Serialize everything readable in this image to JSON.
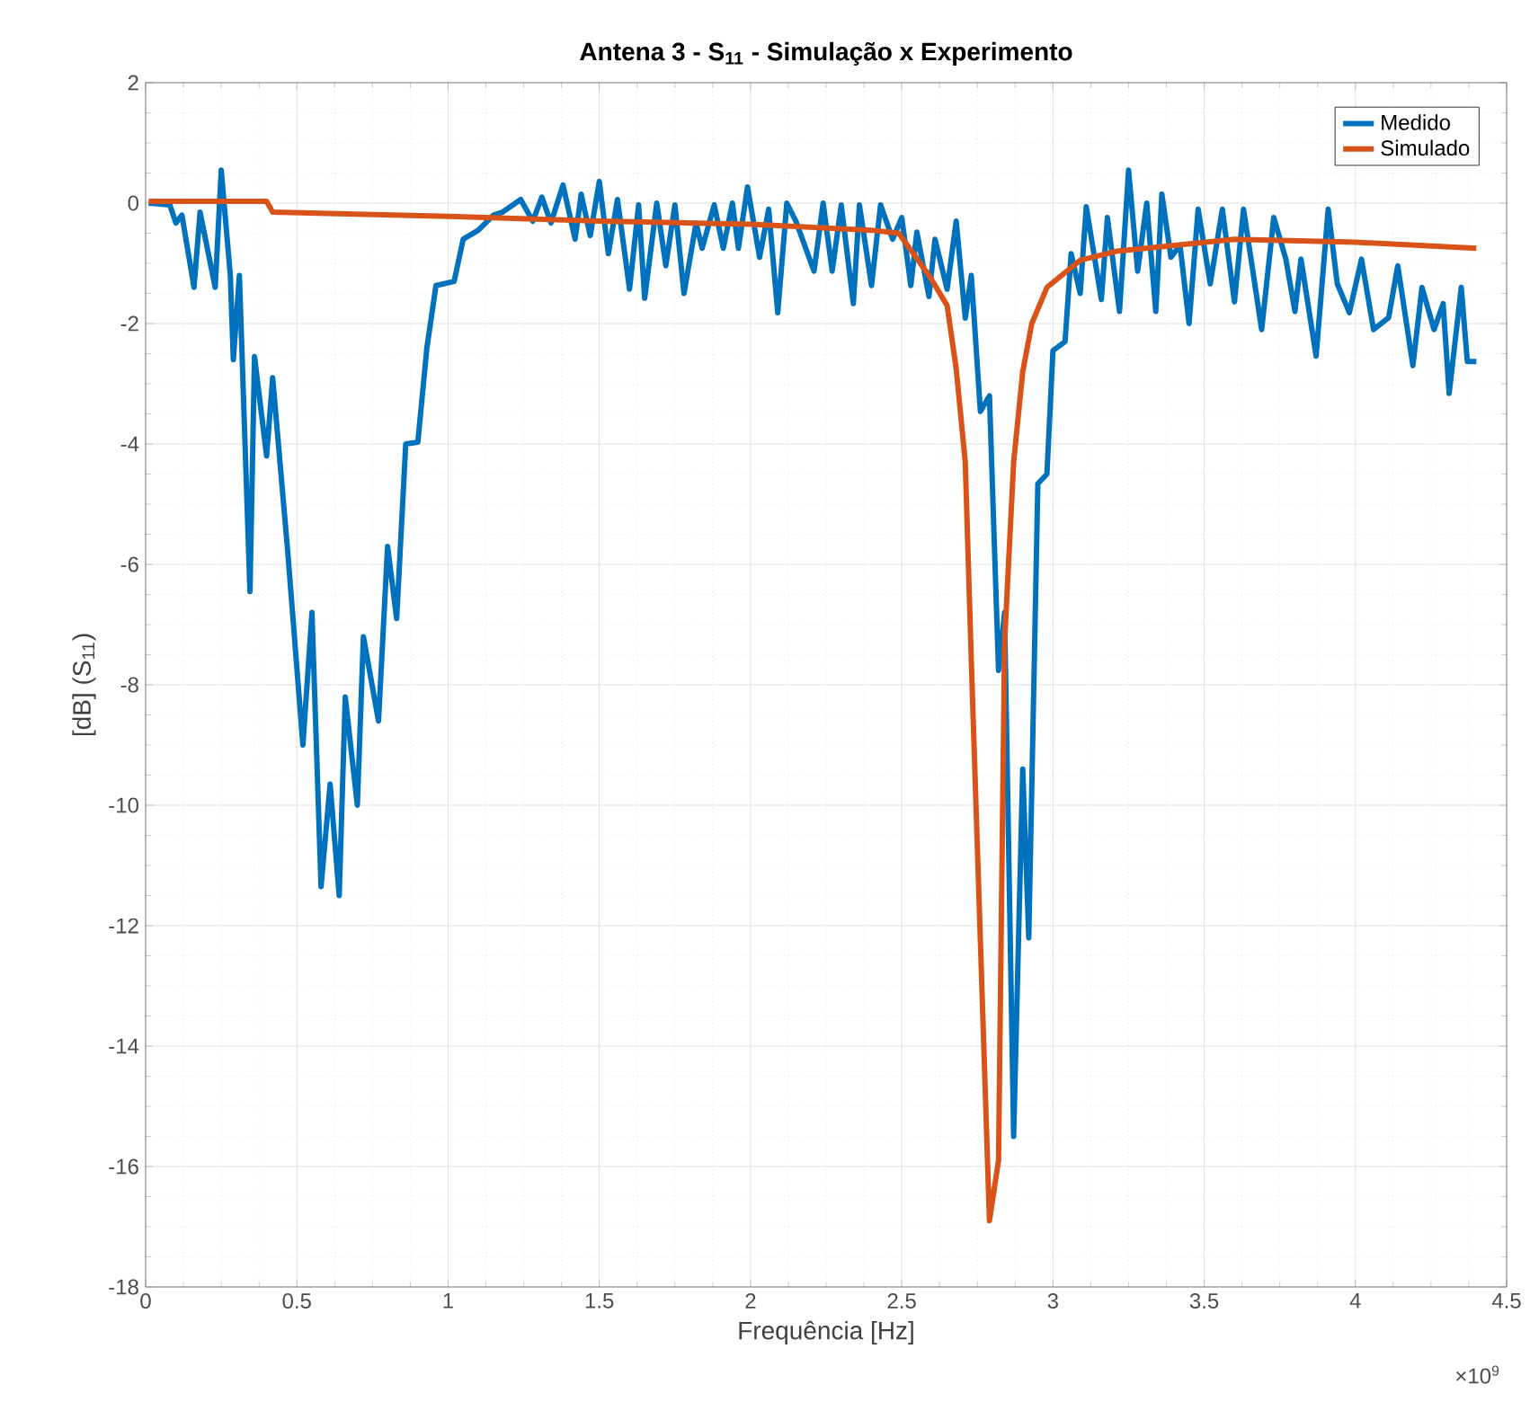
{
  "chart_data": {
    "type": "line",
    "title": "**Antena 3 - S$_{11}$ - Simulação x Experimento**",
    "xlabel": "Frequência [Hz]",
    "ylabel": "[dB] (S$_{11}$)",
    "annotations": [
      "×10$^{9}$"
    ],
    "xlim": [
      0,
      4.5
    ],
    "ylim": [
      -18,
      2
    ],
    "xticks": [
      0,
      0.5,
      1,
      1.5,
      2,
      2.5,
      3,
      3.5,
      4,
      4.5
    ],
    "yticks": [
      -18,
      -16,
      -14,
      -12,
      -10,
      -8,
      -6,
      -4,
      -2,
      0,
      2
    ],
    "grid": true,
    "legend": "top right",
    "marker": "none",
    "line_style": "solid",
    "series": [
      {
        "name": "Medido",
        "color": "#0072bd",
        "x": [
          0.01,
          0.08,
          0.1,
          0.12,
          0.16,
          0.18,
          0.23,
          0.25,
          0.28,
          0.29,
          0.31,
          0.345,
          0.36,
          0.4,
          0.42,
          0.47,
          0.52,
          0.55,
          0.58,
          0.61,
          0.64,
          0.66,
          0.7,
          0.72,
          0.77,
          0.8,
          0.83,
          0.86,
          0.9,
          0.93,
          0.96,
          1.02,
          1.05,
          1.1,
          1.15,
          1.18,
          1.24,
          1.28,
          1.31,
          1.34,
          1.38,
          1.42,
          1.44,
          1.47,
          1.5,
          1.53,
          1.56,
          1.6,
          1.63,
          1.65,
          1.69,
          1.72,
          1.75,
          1.78,
          1.82,
          1.84,
          1.88,
          1.91,
          1.94,
          1.96,
          1.99,
          2.03,
          2.06,
          2.09,
          2.12,
          2.15,
          2.21,
          2.24,
          2.27,
          2.3,
          2.34,
          2.36,
          2.4,
          2.43,
          2.47,
          2.5,
          2.53,
          2.55,
          2.59,
          2.61,
          2.65,
          2.68,
          2.71,
          2.73,
          2.76,
          2.79,
          2.82,
          2.84,
          2.87,
          2.9,
          2.92,
          2.95,
          2.98,
          3.0,
          3.04,
          3.06,
          3.09,
          3.11,
          3.16,
          3.18,
          3.22,
          3.25,
          3.28,
          3.31,
          3.34,
          3.36,
          3.39,
          3.42,
          3.45,
          3.48,
          3.52,
          3.56,
          3.6,
          3.63,
          3.69,
          3.73,
          3.77,
          3.8,
          3.82,
          3.87,
          3.91,
          3.94,
          3.98,
          4.02,
          4.06,
          4.11,
          4.14,
          4.19,
          4.22,
          4.26,
          4.29,
          4.31,
          4.35,
          4.37,
          4.4
        ],
        "values": [
          0,
          -0.03,
          -0.33,
          -0.2,
          -1.4,
          -0.15,
          -1.4,
          0.55,
          -1.2,
          -2.6,
          -1.2,
          -6.45,
          -2.55,
          -4.2,
          -2.9,
          -5.8,
          -9.0,
          -6.8,
          -11.35,
          -9.65,
          -11.5,
          -8.2,
          -10.0,
          -7.2,
          -8.6,
          -5.7,
          -6.9,
          -4.0,
          -3.97,
          -2.4,
          -1.37,
          -1.3,
          -0.6,
          -0.45,
          -0.2,
          -0.15,
          0.06,
          -0.3,
          0.1,
          -0.33,
          0.3,
          -0.6,
          0.15,
          -0.54,
          0.36,
          -0.84,
          0.06,
          -1.43,
          -0.03,
          -1.58,
          0,
          -1.04,
          -0.03,
          -1.5,
          -0.33,
          -0.75,
          -0.03,
          -0.75,
          0,
          -0.75,
          0.27,
          -0.9,
          -0.1,
          -1.82,
          0,
          -0.3,
          -1.13,
          0,
          -1.13,
          -0.03,
          -1.67,
          -0.03,
          -1.37,
          -0.03,
          -0.6,
          -0.24,
          -1.37,
          -0.48,
          -1.55,
          -0.6,
          -1.43,
          -0.3,
          -1.91,
          -1.2,
          -3.46,
          -3.2,
          -7.76,
          -6.8,
          -15.5,
          -9.4,
          -12.2,
          -4.66,
          -4.5,
          -2.45,
          -2.3,
          -0.84,
          -1.5,
          -0.06,
          -1.6,
          -0.24,
          -1.8,
          0.55,
          -1.13,
          0,
          -1.8,
          0.15,
          -0.9,
          -0.7,
          -2.0,
          -0.1,
          -1.34,
          -0.1,
          -1.64,
          -0.1,
          -2.1,
          -0.24,
          -0.93,
          -1.8,
          -0.93,
          -2.54,
          -0.1,
          -1.34,
          -1.82,
          -0.93,
          -2.1,
          -1.9,
          -1.04,
          -2.7,
          -1.4,
          -2.1,
          -1.67,
          -3.16,
          -1.4,
          -2.63,
          -2.63
        ]
      },
      {
        "name": "Simulado",
        "color": "#d95319",
        "x": [
          0.01,
          0.4,
          0.42,
          1.0,
          1.5,
          2.0,
          2.4,
          2.49,
          2.59,
          2.65,
          2.68,
          2.71,
          2.73,
          2.79,
          2.82,
          2.84,
          2.87,
          2.9,
          2.93,
          2.98,
          3.09,
          3.21,
          3.6,
          4.0,
          4.4
        ],
        "values": [
          0.03,
          0.03,
          -0.15,
          -0.22,
          -0.3,
          -0.35,
          -0.45,
          -0.5,
          -1.2,
          -1.7,
          -2.75,
          -4.3,
          -7.6,
          -16.9,
          -15.9,
          -7.3,
          -4.3,
          -2.8,
          -2.0,
          -1.4,
          -0.95,
          -0.8,
          -0.6,
          -0.65,
          -0.75
        ]
      }
    ]
  }
}
